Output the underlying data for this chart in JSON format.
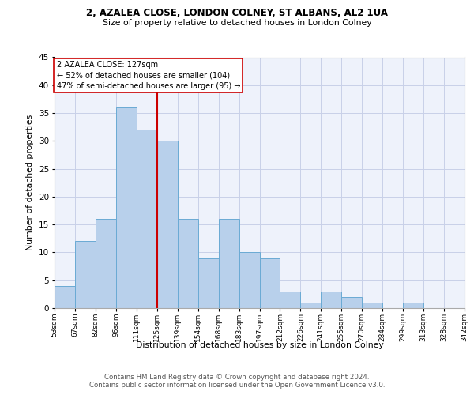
{
  "title_line1": "2, AZALEA CLOSE, LONDON COLNEY, ST ALBANS, AL2 1UA",
  "title_line2": "Size of property relative to detached houses in London Colney",
  "xlabel": "Distribution of detached houses by size in London Colney",
  "ylabel": "Number of detached properties",
  "bar_values": [
    4,
    12,
    16,
    36,
    32,
    30,
    16,
    9,
    16,
    10,
    9,
    3,
    1,
    3,
    2,
    1,
    0,
    1,
    0,
    0
  ],
  "bin_labels": [
    "53sqm",
    "67sqm",
    "82sqm",
    "96sqm",
    "111sqm",
    "125sqm",
    "139sqm",
    "154sqm",
    "168sqm",
    "183sqm",
    "197sqm",
    "212sqm",
    "226sqm",
    "241sqm",
    "255sqm",
    "270sqm",
    "284sqm",
    "299sqm",
    "313sqm",
    "328sqm",
    "342sqm"
  ],
  "bar_color": "#b8d0eb",
  "bar_edge_color": "#6aaad4",
  "vline_color": "#cc0000",
  "annotation_text": "2 AZALEA CLOSE: 127sqm\n← 52% of detached houses are smaller (104)\n47% of semi-detached houses are larger (95) →",
  "annotation_box_color": "#ffffff",
  "annotation_box_edge": "#cc0000",
  "ylim": [
    0,
    45
  ],
  "yticks": [
    0,
    5,
    10,
    15,
    20,
    25,
    30,
    35,
    40,
    45
  ],
  "footer_line1": "Contains HM Land Registry data © Crown copyright and database right 2024.",
  "footer_line2": "Contains public sector information licensed under the Open Government Licence v3.0.",
  "background_color": "#eef2fb",
  "grid_color": "#c8d0e8"
}
